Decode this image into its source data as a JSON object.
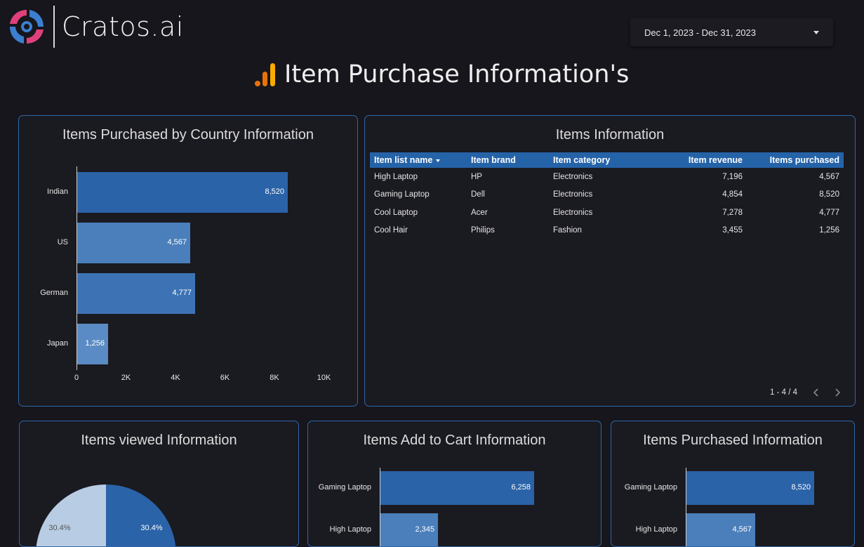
{
  "header": {
    "logo_text": "Cratos.ai",
    "date_range": "Dec 1, 2023 - Dec 31, 2023",
    "page_title": "Item Purchase Information's"
  },
  "country_chart": {
    "title": "Items Purchased by Country Information",
    "chart_data": {
      "type": "bar",
      "orientation": "horizontal",
      "categories": [
        "Indian",
        "US",
        "German",
        "Japan"
      ],
      "values": [
        8520,
        4567,
        4777,
        1256
      ],
      "value_labels": [
        "8,520",
        "4,567",
        "4,777",
        "1,256"
      ],
      "xlim": [
        0,
        10000
      ],
      "ticks": [
        "0",
        "2K",
        "4K",
        "6K",
        "8K",
        "10K"
      ],
      "colors": [
        "#2b63a8",
        "#4a7fbb",
        "#3d73b4",
        "#5b8bc4"
      ]
    }
  },
  "items_table": {
    "title": "Items Information",
    "columns": [
      "Item list name",
      "Item brand",
      "Item category",
      "Item revenue",
      "Items purchased"
    ],
    "rows": [
      [
        "High Laptop",
        "HP",
        "Electronics",
        "7,196",
        "4,567"
      ],
      [
        "Gaming Laptop",
        "Dell",
        "Electronics",
        "4,854",
        "8,520"
      ],
      [
        "Cool Laptop",
        "Acer",
        "Electronics",
        "7,278",
        "4,777"
      ],
      [
        "Cool Hair",
        "Philips",
        "Fashion",
        "3,455",
        "1,256"
      ]
    ],
    "pagination": "1 - 4 / 4"
  },
  "viewed_chart": {
    "title": "Items viewed Information",
    "chart_data": {
      "type": "pie",
      "slices": [
        {
          "label": "30.4%",
          "value": 30.4,
          "color": "#2b63a8"
        },
        {
          "label": "30.4%",
          "value": 30.4,
          "color": "#b8cce3"
        }
      ]
    }
  },
  "cart_chart": {
    "title": "Items Add to Cart Information",
    "chart_data": {
      "type": "bar",
      "orientation": "horizontal",
      "categories": [
        "Gaming Laptop",
        "High Laptop"
      ],
      "values": [
        6258,
        2345
      ],
      "value_labels": [
        "6,258",
        "2,345"
      ],
      "colors": [
        "#2b63a8",
        "#4a7fbb"
      ]
    }
  },
  "purchased_chart": {
    "title": "Items Purchased Information",
    "chart_data": {
      "type": "bar",
      "orientation": "horizontal",
      "categories": [
        "Gaming Laptop",
        "High Laptop"
      ],
      "values": [
        8520,
        4567
      ],
      "value_labels": [
        "8,520",
        "4,567"
      ],
      "colors": [
        "#2b63a8",
        "#4a7fbb"
      ]
    }
  }
}
